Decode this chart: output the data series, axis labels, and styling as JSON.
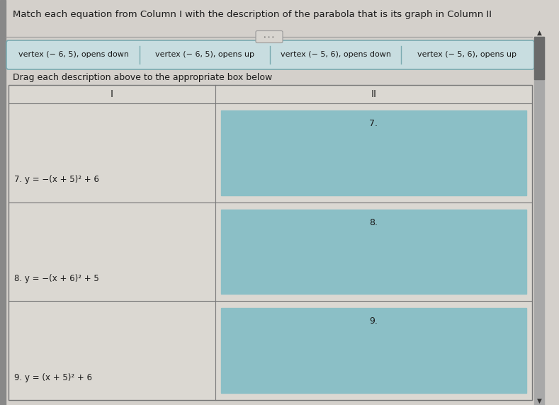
{
  "title": "Match each equation from Column I with the description of the parabola that is its graph in Column II",
  "drag_instruction": "Drag each description above to the appropriate box below",
  "descriptions": [
    "vertex (− 6, 5), opens down",
    "vertex (− 6, 5), opens up",
    "vertex (− 5, 6), opens down",
    "vertex (− 5, 6), opens up"
  ],
  "rows": [
    {
      "number": "7.",
      "equation": "7. y = −(x + 5)² + 6"
    },
    {
      "number": "8.",
      "equation": "8. y = −(x + 6)² + 5"
    },
    {
      "number": "9.",
      "equation": "9. y = (x + 5)² + 6"
    }
  ],
  "fig_bg": "#b8b8b8",
  "page_bg": "#d4d0cb",
  "desc_box_bg": "#c8dde0",
  "desc_box_border": "#7aaab0",
  "teal_box_color": "#8bbfc6",
  "table_bg": "#dbd8d2",
  "table_border": "#777777",
  "text_color": "#1a1a1a",
  "col_header_color": "#222222",
  "scrollbar_bg": "#a8a8a8",
  "scrollbar_thumb": "#6a6a6a",
  "pill_bg": "#d8d5d0",
  "pill_border": "#999999"
}
